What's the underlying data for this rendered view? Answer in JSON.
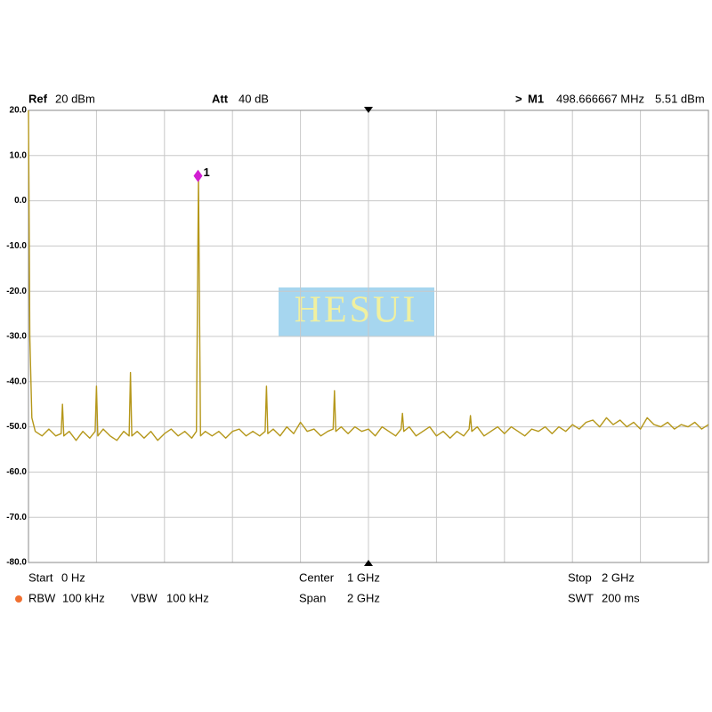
{
  "chart_data": {
    "type": "line",
    "watermark": "HESUI",
    "header": [
      {
        "label": "Ref",
        "value": "20 dBm"
      },
      {
        "label": "Att",
        "value": "40 dB"
      }
    ],
    "marker": {
      "prefix": ">",
      "name": "M1",
      "frequency": "498.666667 MHz",
      "level": "5.51 dBm",
      "label": "1",
      "x": 0.498666667,
      "y": 5.51,
      "color": "#d21ed2"
    },
    "footer": [
      {
        "label": "Start",
        "value": "0 Hz"
      },
      {
        "label": "Center",
        "value": "1 GHz"
      },
      {
        "label": "Stop",
        "value": "2 GHz"
      },
      {
        "label": "RBW",
        "value": "100 kHz"
      },
      {
        "label": "VBW",
        "value": "100 kHz"
      },
      {
        "label": "Span",
        "value": "2 GHz"
      },
      {
        "label": "SWT",
        "value": "200 ms"
      }
    ],
    "xlim": [
      0,
      2
    ],
    "xticks": [
      0,
      0.2,
      0.4,
      0.6,
      0.8,
      1,
      1.2,
      1.4,
      1.6,
      1.8,
      2
    ],
    "ylim": [
      -80,
      20
    ],
    "yticks": [
      {
        "value": 20,
        "label": "20.0"
      },
      {
        "value": 10,
        "label": "10.0"
      },
      {
        "value": 0,
        "label": "0.0"
      },
      {
        "value": -10,
        "label": "-10.0"
      },
      {
        "value": -20,
        "label": "-20.0"
      },
      {
        "value": -30,
        "label": "-30.0"
      },
      {
        "value": -40,
        "label": "-40.0"
      },
      {
        "value": -50,
        "label": "-50.0"
      },
      {
        "value": -60,
        "label": "-60.0"
      },
      {
        "value": -70,
        "label": "-70.0"
      },
      {
        "value": -80,
        "label": "-80.0"
      }
    ],
    "grid": true,
    "color": "#b5971a",
    "x": [
      0,
      0.004,
      0.01,
      0.02,
      0.04,
      0.06,
      0.08,
      0.096,
      0.1,
      0.104,
      0.12,
      0.14,
      0.16,
      0.18,
      0.196,
      0.2,
      0.204,
      0.22,
      0.24,
      0.26,
      0.28,
      0.296,
      0.3,
      0.304,
      0.32,
      0.34,
      0.36,
      0.38,
      0.4,
      0.42,
      0.44,
      0.46,
      0.48,
      0.494,
      0.5,
      0.506,
      0.52,
      0.54,
      0.56,
      0.58,
      0.6,
      0.62,
      0.64,
      0.66,
      0.68,
      0.696,
      0.7,
      0.704,
      0.72,
      0.74,
      0.76,
      0.78,
      0.8,
      0.82,
      0.84,
      0.86,
      0.88,
      0.896,
      0.9,
      0.904,
      0.92,
      0.94,
      0.96,
      0.98,
      1.0,
      1.02,
      1.04,
      1.06,
      1.08,
      1.096,
      1.1,
      1.104,
      1.12,
      1.14,
      1.16,
      1.18,
      1.2,
      1.22,
      1.24,
      1.26,
      1.28,
      1.296,
      1.3,
      1.304,
      1.32,
      1.34,
      1.36,
      1.38,
      1.4,
      1.42,
      1.44,
      1.46,
      1.48,
      1.5,
      1.52,
      1.54,
      1.56,
      1.58,
      1.6,
      1.62,
      1.64,
      1.66,
      1.68,
      1.7,
      1.72,
      1.74,
      1.76,
      1.78,
      1.8,
      1.82,
      1.84,
      1.86,
      1.88,
      1.9,
      1.92,
      1.94,
      1.96,
      1.98,
      2.0
    ],
    "values": [
      20,
      -30,
      -48,
      -51,
      -52,
      -50.5,
      -52,
      -51.5,
      -45,
      -52,
      -51,
      -53,
      -51,
      -52.5,
      -51,
      -41,
      -52,
      -50.5,
      -52,
      -53,
      -51,
      -52,
      -38,
      -52,
      -51,
      -52.5,
      -51,
      -53,
      -51.5,
      -50.5,
      -52,
      -51,
      -52.5,
      -51,
      5.5,
      -52,
      -51,
      -52,
      -51,
      -52.5,
      -51,
      -50.5,
      -52,
      -51,
      -52,
      -51,
      -41,
      -51.5,
      -50.5,
      -52,
      -50,
      -51.5,
      -49,
      -51,
      -50.5,
      -52,
      -51,
      -50.5,
      -42,
      -51,
      -50,
      -51.5,
      -50,
      -51,
      -50.5,
      -52,
      -50,
      -51,
      -52,
      -50.5,
      -47,
      -51,
      -50,
      -52,
      -51,
      -50,
      -52,
      -51,
      -52.5,
      -51,
      -52,
      -50.5,
      -47.5,
      -51,
      -50,
      -52,
      -51,
      -50,
      -51.5,
      -50,
      -51,
      -52,
      -50.5,
      -51,
      -50,
      -51.5,
      -50,
      -51,
      -49.5,
      -50.5,
      -49,
      -48.5,
      -50,
      -48,
      -49.5,
      -48.5,
      -50,
      -49,
      -50.5,
      -48,
      -49.5,
      -50,
      -49,
      -50.5,
      -49.5,
      -50,
      -49,
      -50.5,
      -49.5
    ]
  }
}
